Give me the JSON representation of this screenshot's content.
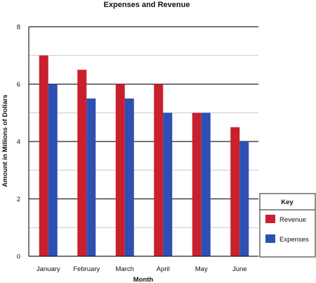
{
  "chart_data": {
    "type": "bar",
    "title": "Expenses and Revenue",
    "xlabel": "Month",
    "ylabel": "Amount in Millions of Dollars",
    "categories": [
      "January",
      "February",
      "March",
      "April",
      "May",
      "June"
    ],
    "series": [
      {
        "name": "Revenue",
        "color": "#c8202c",
        "values": [
          7,
          6.5,
          6,
          6,
          5,
          4.5
        ]
      },
      {
        "name": "Expenses",
        "color": "#2e4fb3",
        "values": [
          6,
          5.5,
          5.5,
          5,
          5,
          4
        ]
      }
    ],
    "ylim": [
      0,
      8
    ],
    "yticks": [
      0,
      2,
      4,
      6,
      8
    ],
    "minor_grid_step": 1,
    "grid": true,
    "legend": {
      "title": "Key",
      "placement": "right"
    }
  }
}
